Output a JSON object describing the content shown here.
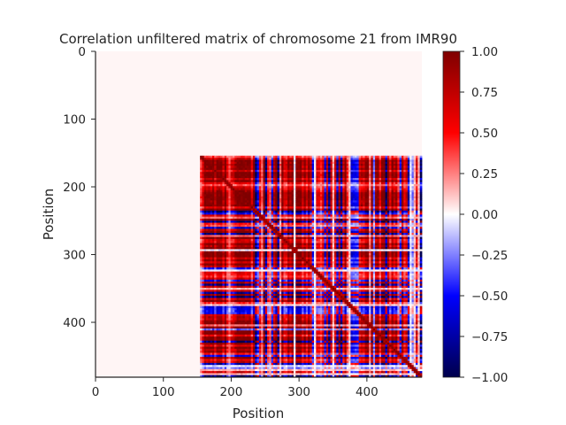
{
  "chart_data": {
    "type": "heatmap",
    "title": "Correlation unfiltered matrix of chromosome 21 from IMR90",
    "xlabel": "Position",
    "ylabel": "Position",
    "xlim": [
      0,
      481
    ],
    "ylim": [
      481,
      0
    ],
    "x_ticks": [
      "0",
      "100",
      "200",
      "300",
      "400"
    ],
    "y_ticks": [
      "0",
      "100",
      "200",
      "300",
      "400"
    ],
    "colormap": "seismic",
    "colorbar": {
      "range": [
        -1.0,
        1.0
      ],
      "ticks": [
        "1.00",
        "0.75",
        "0.50",
        "0.25",
        "0.00",
        "−0.25",
        "−0.50",
        "−0.75",
        "−1.00"
      ]
    },
    "matrix_size": 481,
    "empty_region_end": 154,
    "colors": {
      "neg_max": "#00004c",
      "neg": "#0000ff",
      "zero": "#ffffff",
      "pos": "#ff0000",
      "pos_max": "#7f0000",
      "empty_fill": "#fff5f5"
    }
  }
}
